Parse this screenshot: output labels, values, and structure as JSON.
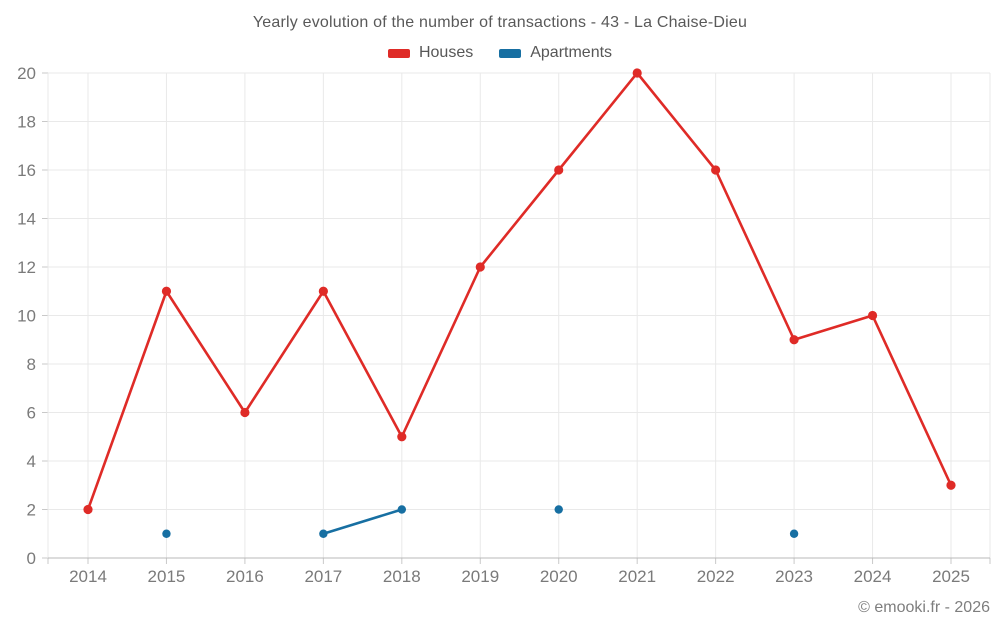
{
  "footer": "© emooki.fr - 2026",
  "chart_data": {
    "type": "line",
    "title": "Yearly evolution of the number of transactions - 43 - La Chaise-Dieu",
    "xlabel": "",
    "ylabel": "",
    "x": [
      2014,
      2015,
      2016,
      2017,
      2018,
      2019,
      2020,
      2021,
      2022,
      2023,
      2024,
      2025
    ],
    "series": [
      {
        "name": "Houses",
        "color": "#df2b27",
        "values": [
          2,
          11,
          6,
          11,
          5,
          12,
          16,
          20,
          16,
          9,
          10,
          3
        ]
      },
      {
        "name": "Apartments",
        "color": "#176fa2",
        "values": [
          null,
          1,
          null,
          1,
          2,
          null,
          2,
          null,
          null,
          1,
          null,
          null
        ]
      }
    ],
    "ylim": [
      0,
      20
    ],
    "yticks": [
      0,
      2,
      4,
      6,
      8,
      10,
      12,
      14,
      16,
      18,
      20
    ],
    "grid": true,
    "legend_position": "top",
    "colors": {
      "grid": "#e9e9e9",
      "axis": "#b8b8b8",
      "tick": "#c9c9c9",
      "tick_text": "#7a7a7a",
      "title_text": "#595959"
    }
  }
}
